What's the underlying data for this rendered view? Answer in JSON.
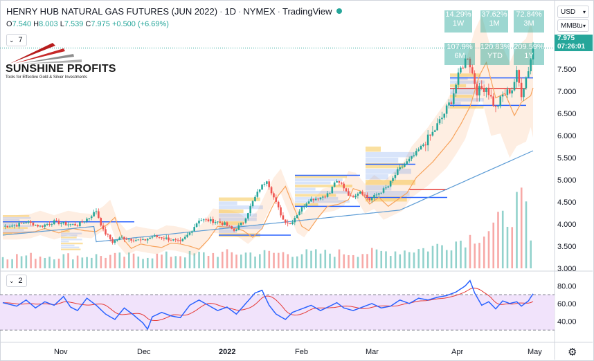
{
  "header": {
    "title": "HENRY HUB NATURAL GAS FUTURES (JUN 2022)",
    "interval": "1D",
    "exchange": "NYMEX",
    "platform": "TradingView"
  },
  "ohlc": {
    "o_label": "O",
    "o": "7.540",
    "h_label": "H",
    "h": "8.003",
    "l_label": "L",
    "l": "7.539",
    "c_label": "C",
    "c": "7.975",
    "change": "+0.500 (+6.69%)"
  },
  "indicators": {
    "main_count": "7",
    "rsi_count": "2"
  },
  "controls": {
    "currency": "USD",
    "unit": "MMBtu"
  },
  "performance": [
    {
      "value": "14.29%",
      "period": "1W"
    },
    {
      "value": "37.62%",
      "period": "1M"
    },
    {
      "value": "72.84%",
      "period": "3M"
    },
    {
      "value": "107.9%",
      "period": "6M"
    },
    {
      "value": "120.83%",
      "period": "YTD"
    },
    {
      "value": "209.59%",
      "period": "1Y"
    }
  ],
  "price_badge": {
    "price": "7.975",
    "time": "07:26:01"
  },
  "logo": {
    "name": "SUNSHINE PROFITS",
    "tagline": "Tools for Effective Gold & Silver Investments"
  },
  "colors": {
    "up": "#26a69a",
    "down": "#ef5350",
    "rsi": "#2962ff",
    "rsi_ma": "#e53935",
    "ema": "#f7a35c",
    "sma": "#5b9bd5"
  },
  "chart_data": {
    "type": "candlestick",
    "price_axis": {
      "ticks": [
        "8.000",
        "7.500",
        "7.000",
        "6.500",
        "6.000",
        "5.500",
        "5.000",
        "4.500",
        "4.000",
        "3.500",
        "3.000"
      ],
      "range": [
        3.0,
        8.2
      ]
    },
    "rsi_axis": {
      "ticks": [
        "80.00",
        "60.00",
        "40.00"
      ],
      "range": [
        20,
        92
      ],
      "upper_band": 70,
      "lower_band": 30
    },
    "x_labels": [
      "Nov",
      "Dec",
      "2022",
      "Feb",
      "Mar",
      "Apr",
      "May"
    ],
    "anchors": [
      [
        0,
        3.95
      ],
      [
        6,
        3.98
      ],
      [
        10,
        4.05
      ],
      [
        16,
        3.95
      ],
      [
        22,
        4.05
      ],
      [
        27,
        4.0
      ],
      [
        32,
        3.98
      ],
      [
        37,
        4.15
      ],
      [
        40,
        4.3
      ],
      [
        43,
        3.85
      ],
      [
        47,
        3.6
      ],
      [
        51,
        3.7
      ],
      [
        56,
        3.65
      ],
      [
        60,
        3.62
      ],
      [
        64,
        3.72
      ],
      [
        68,
        3.7
      ],
      [
        72,
        3.65
      ],
      [
        76,
        3.58
      ],
      [
        80,
        3.8
      ],
      [
        84,
        4.1
      ],
      [
        88,
        4.08
      ],
      [
        92,
        4.05
      ],
      [
        95,
        4.0
      ],
      [
        99,
        3.85
      ],
      [
        103,
        4.05
      ],
      [
        107,
        4.5
      ],
      [
        110,
        4.8
      ],
      [
        113,
        5.0
      ],
      [
        116,
        4.6
      ],
      [
        120,
        4.1
      ],
      [
        123,
        4.0
      ],
      [
        127,
        4.3
      ],
      [
        131,
        4.55
      ],
      [
        136,
        4.6
      ],
      [
        140,
        4.7
      ],
      [
        142,
        4.95
      ],
      [
        145,
        4.9
      ],
      [
        149,
        4.6
      ],
      [
        153,
        4.75
      ],
      [
        157,
        4.55
      ],
      [
        161,
        4.7
      ],
      [
        165,
        4.85
      ],
      [
        169,
        5.2
      ],
      [
        173,
        5.4
      ],
      [
        176,
        5.55
      ],
      [
        180,
        5.8
      ],
      [
        184,
        6.05
      ],
      [
        188,
        6.4
      ],
      [
        192,
        6.8
      ],
      [
        196,
        7.5
      ],
      [
        199,
        7.8
      ],
      [
        203,
        7.0
      ],
      [
        207,
        7.1
      ],
      [
        211,
        6.6
      ],
      [
        214,
        6.9
      ],
      [
        218,
        7.05
      ],
      [
        220,
        7.4
      ],
      [
        222,
        6.95
      ],
      [
        225,
        7.5
      ],
      [
        227,
        7.975
      ]
    ],
    "volume": [
      [
        0,
        0.18
      ],
      [
        20,
        0.18
      ],
      [
        40,
        0.18
      ],
      [
        60,
        0.18
      ],
      [
        80,
        0.2
      ],
      [
        100,
        0.22
      ],
      [
        120,
        0.22
      ],
      [
        140,
        0.22
      ],
      [
        160,
        0.23
      ],
      [
        180,
        0.28
      ],
      [
        190,
        0.35
      ],
      [
        200,
        0.45
      ],
      [
        205,
        0.5
      ],
      [
        210,
        0.6
      ],
      [
        215,
        0.7
      ],
      [
        218,
        0.85
      ],
      [
        221,
        0.95
      ],
      [
        224,
        0.8
      ],
      [
        226,
        0.35
      ]
    ],
    "rsi": [
      [
        0,
        61
      ],
      [
        6,
        57
      ],
      [
        10,
        64
      ],
      [
        14,
        55
      ],
      [
        18,
        62
      ],
      [
        22,
        58
      ],
      [
        26,
        68
      ],
      [
        29,
        56
      ],
      [
        32,
        52
      ],
      [
        36,
        66
      ],
      [
        40,
        58
      ],
      [
        44,
        48
      ],
      [
        48,
        42
      ],
      [
        52,
        55
      ],
      [
        56,
        47
      ],
      [
        60,
        38
      ],
      [
        62,
        31
      ],
      [
        64,
        45
      ],
      [
        68,
        50
      ],
      [
        72,
        46
      ],
      [
        76,
        44
      ],
      [
        80,
        58
      ],
      [
        84,
        64
      ],
      [
        88,
        58
      ],
      [
        92,
        52
      ],
      [
        96,
        56
      ],
      [
        100,
        48
      ],
      [
        104,
        60
      ],
      [
        108,
        72
      ],
      [
        111,
        75
      ],
      [
        114,
        58
      ],
      [
        117,
        48
      ],
      [
        121,
        42
      ],
      [
        124,
        50
      ],
      [
        128,
        54
      ],
      [
        132,
        58
      ],
      [
        136,
        52
      ],
      [
        140,
        57
      ],
      [
        143,
        61
      ],
      [
        146,
        55
      ],
      [
        150,
        52
      ],
      [
        154,
        56
      ],
      [
        158,
        60
      ],
      [
        162,
        55
      ],
      [
        166,
        57
      ],
      [
        170,
        64
      ],
      [
        174,
        60
      ],
      [
        178,
        66
      ],
      [
        182,
        64
      ],
      [
        186,
        67
      ],
      [
        190,
        69
      ],
      [
        194,
        73
      ],
      [
        198,
        80
      ],
      [
        200,
        86
      ],
      [
        202,
        72
      ],
      [
        205,
        58
      ],
      [
        208,
        62
      ],
      [
        211,
        54
      ],
      [
        214,
        63
      ],
      [
        217,
        60
      ],
      [
        220,
        62
      ],
      [
        222,
        57
      ],
      [
        225,
        63
      ],
      [
        227,
        71
      ]
    ],
    "candle_count": 228
  }
}
